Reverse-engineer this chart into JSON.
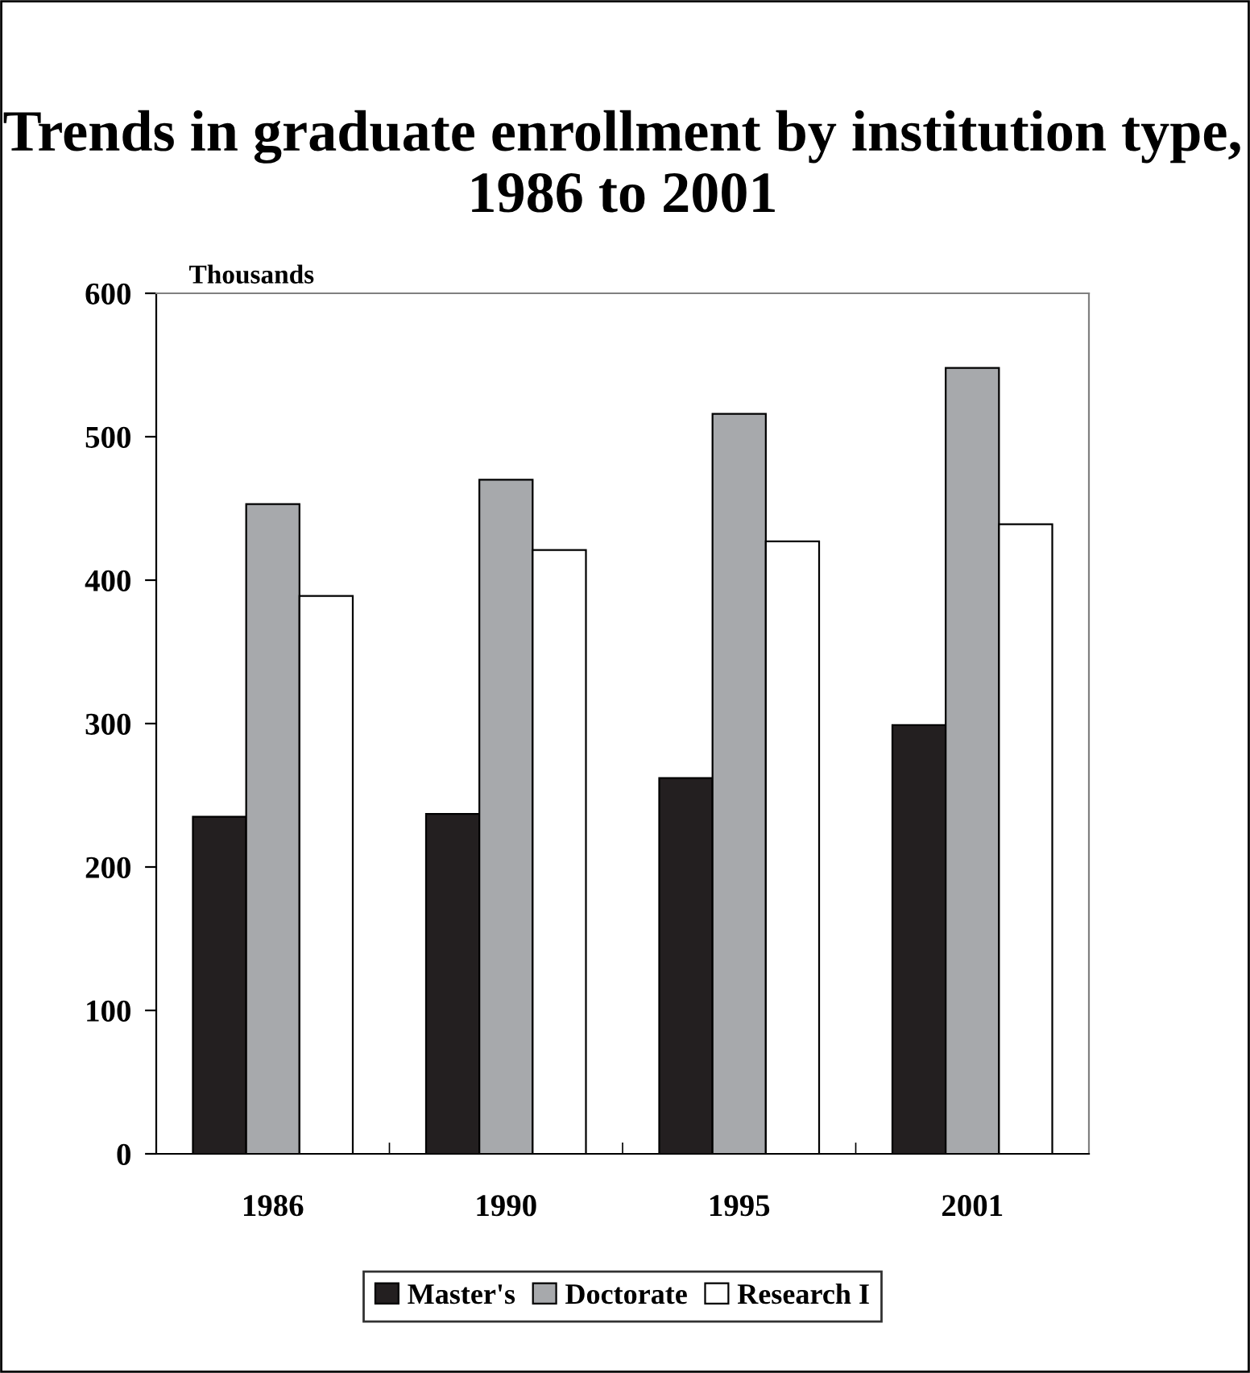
{
  "chart_data": {
    "type": "bar",
    "title": "Trends in graduate enrollment by institution type, 1986 to 2001",
    "ylabel": "Thousands",
    "categories": [
      "1986",
      "1990",
      "1995",
      "2001"
    ],
    "series": [
      {
        "name": "Master's",
        "color": "#231f20",
        "values": [
          235,
          237,
          262,
          299
        ]
      },
      {
        "name": "Doctorate",
        "color": "#a7a9ac",
        "values": [
          453,
          470,
          516,
          548
        ]
      },
      {
        "name": "Research I",
        "color": "#ffffff",
        "values": [
          389,
          421,
          427,
          439
        ]
      }
    ],
    "ylim": [
      0,
      600
    ],
    "yticks": [
      0,
      100,
      200,
      300,
      400,
      500,
      600
    ],
    "grid": false,
    "legend": "bottom"
  }
}
